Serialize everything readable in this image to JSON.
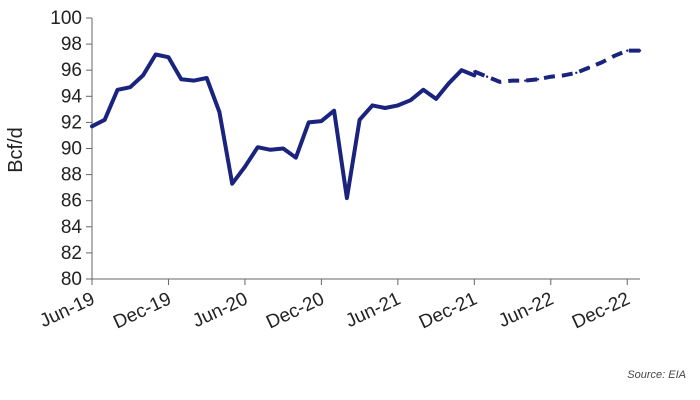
{
  "chart_data": {
    "type": "line",
    "ylabel": "Bcf/d",
    "ylim": [
      80,
      100
    ],
    "yticks": [
      80,
      82,
      84,
      86,
      88,
      90,
      92,
      94,
      96,
      98,
      100
    ],
    "x_tick_labels": [
      "Jun-19",
      "Dec-19",
      "Jun-20",
      "Dec-20",
      "Jun-21",
      "Dec-21",
      "Jun-22",
      "Dec-22"
    ],
    "x_tick_month_index": [
      0,
      6,
      12,
      18,
      24,
      30,
      36,
      42
    ],
    "grid": false,
    "series": [
      {
        "style": "solid",
        "color": "#1a237e",
        "x": [
          "Jun-19",
          "Jul-19",
          "Aug-19",
          "Sep-19",
          "Oct-19",
          "Nov-19",
          "Dec-19",
          "Jan-20",
          "Feb-20",
          "Mar-20",
          "Apr-20",
          "May-20",
          "Jun-20",
          "Jul-20",
          "Aug-20",
          "Sep-20",
          "Oct-20",
          "Nov-20",
          "Dec-20",
          "Jan-21",
          "Feb-21",
          "Mar-21",
          "Apr-21",
          "May-21",
          "Jun-21",
          "Jul-21",
          "Aug-21",
          "Sep-21",
          "Oct-21",
          "Nov-21",
          "Dec-21"
        ],
        "values": [
          91.7,
          92.2,
          94.5,
          94.7,
          95.6,
          97.2,
          97.0,
          95.3,
          95.2,
          95.4,
          92.8,
          87.3,
          88.6,
          90.1,
          89.9,
          90.0,
          89.3,
          92.0,
          92.1,
          92.9,
          86.2,
          92.2,
          93.3,
          93.1,
          93.3,
          93.7,
          94.5,
          93.8,
          95.0,
          96.0,
          95.6
        ]
      },
      {
        "style": "dashed",
        "color": "#1a237e",
        "x": [
          "Dec-21",
          "Jan-22",
          "Feb-22",
          "Mar-22",
          "Apr-22",
          "May-22",
          "Jun-22",
          "Jul-22",
          "Aug-22",
          "Sep-22",
          "Oct-22",
          "Nov-22",
          "Dec-22",
          "Jan-23"
        ],
        "values": [
          95.9,
          95.5,
          95.1,
          95.2,
          95.2,
          95.3,
          95.5,
          95.6,
          95.8,
          96.2,
          96.6,
          97.1,
          97.5,
          97.5
        ]
      }
    ]
  },
  "source": "Source: EIA"
}
